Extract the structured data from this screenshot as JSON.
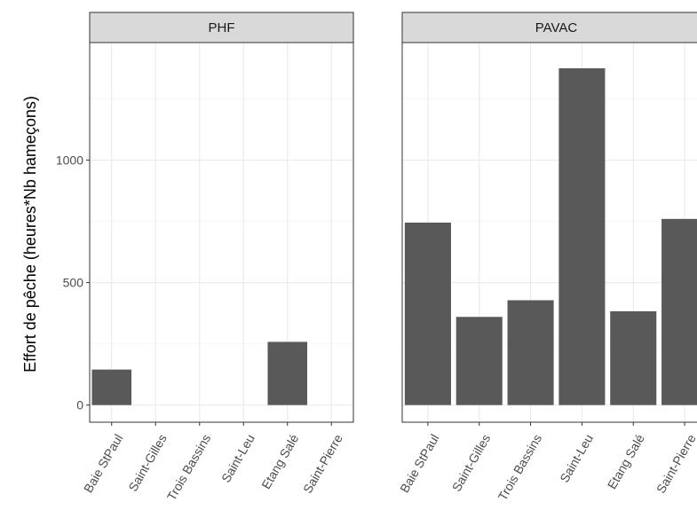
{
  "chart_data": {
    "type": "bar",
    "ylabel": "Effort de pêche (heures*Nb hameçons)",
    "xlabel": "",
    "ylim": [
      -70,
      1480
    ],
    "yticks": [
      0,
      500,
      1000
    ],
    "ytick_labels": [
      "0",
      "500",
      "1000"
    ],
    "grid": true,
    "bar_color": "#595959",
    "categories": [
      "Baie StPaul",
      "Saint-Gilles",
      "Trois Bassins",
      "Saint-Leu",
      "Etang Salé",
      "Saint-Pierre"
    ],
    "panels": [
      {
        "name": "PHF",
        "values": [
          145,
          0,
          0,
          0,
          258,
          0
        ]
      },
      {
        "name": "PAVAC",
        "values": [
          745,
          360,
          428,
          1375,
          383,
          760
        ]
      }
    ]
  }
}
